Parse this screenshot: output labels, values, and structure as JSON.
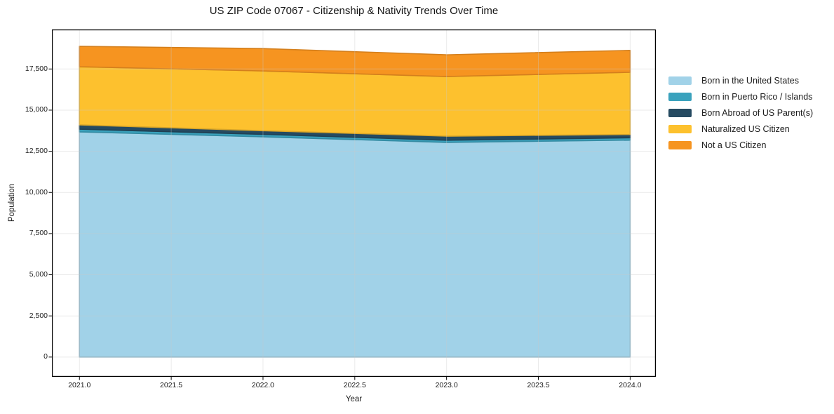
{
  "title": "US ZIP Code 07067 - Citizenship & Nativity Trends Over Time",
  "chart_data": {
    "type": "area",
    "stacked": true,
    "title": "US ZIP Code 07067 - Citizenship & Nativity Trends Over Time",
    "xlabel": "Year",
    "ylabel": "Population",
    "x": [
      2021,
      2022,
      2023,
      2024
    ],
    "series": [
      {
        "name": "Born in the United States",
        "color": "#a1d2e8",
        "values": [
          13680,
          13380,
          13040,
          13180
        ]
      },
      {
        "name": "Born in Puerto Rico / Islands",
        "color": "#3aa2bd",
        "values": [
          165,
          150,
          130,
          140
        ]
      },
      {
        "name": "Born Abroad of US Parent(s)",
        "color": "#254a61",
        "values": [
          260,
          220,
          250,
          200
        ]
      },
      {
        "name": "Naturalized US Citizen",
        "color": "#fdc12e",
        "values": [
          3530,
          3630,
          3620,
          3780
        ]
      },
      {
        "name": "Not a US Citizen",
        "color": "#f69420",
        "values": [
          1240,
          1360,
          1320,
          1330
        ]
      }
    ],
    "totals": [
      18875,
      18740,
      18360,
      18630
    ],
    "xticks": {
      "values": [
        2021,
        2021.5,
        2022,
        2022.5,
        2023,
        2023.5,
        2024
      ],
      "labels": [
        "2021.0",
        "2021.5",
        "2022.0",
        "2022.5",
        "2023.0",
        "2023.5",
        "2024.0"
      ]
    },
    "yticks": {
      "values": [
        0,
        2500,
        5000,
        7500,
        10000,
        12500,
        15000,
        17500
      ],
      "labels": [
        "0",
        "2,500",
        "5,000",
        "7,500",
        "10,000",
        "12,500",
        "15,000",
        "17,500"
      ]
    },
    "xlim": [
      2020.85,
      2024.14
    ],
    "ylim": [
      -1200,
      19900
    ],
    "grid": true,
    "legend_position": "center right",
    "grid_color": "#c9c9c9",
    "spine_color": "#000000"
  }
}
